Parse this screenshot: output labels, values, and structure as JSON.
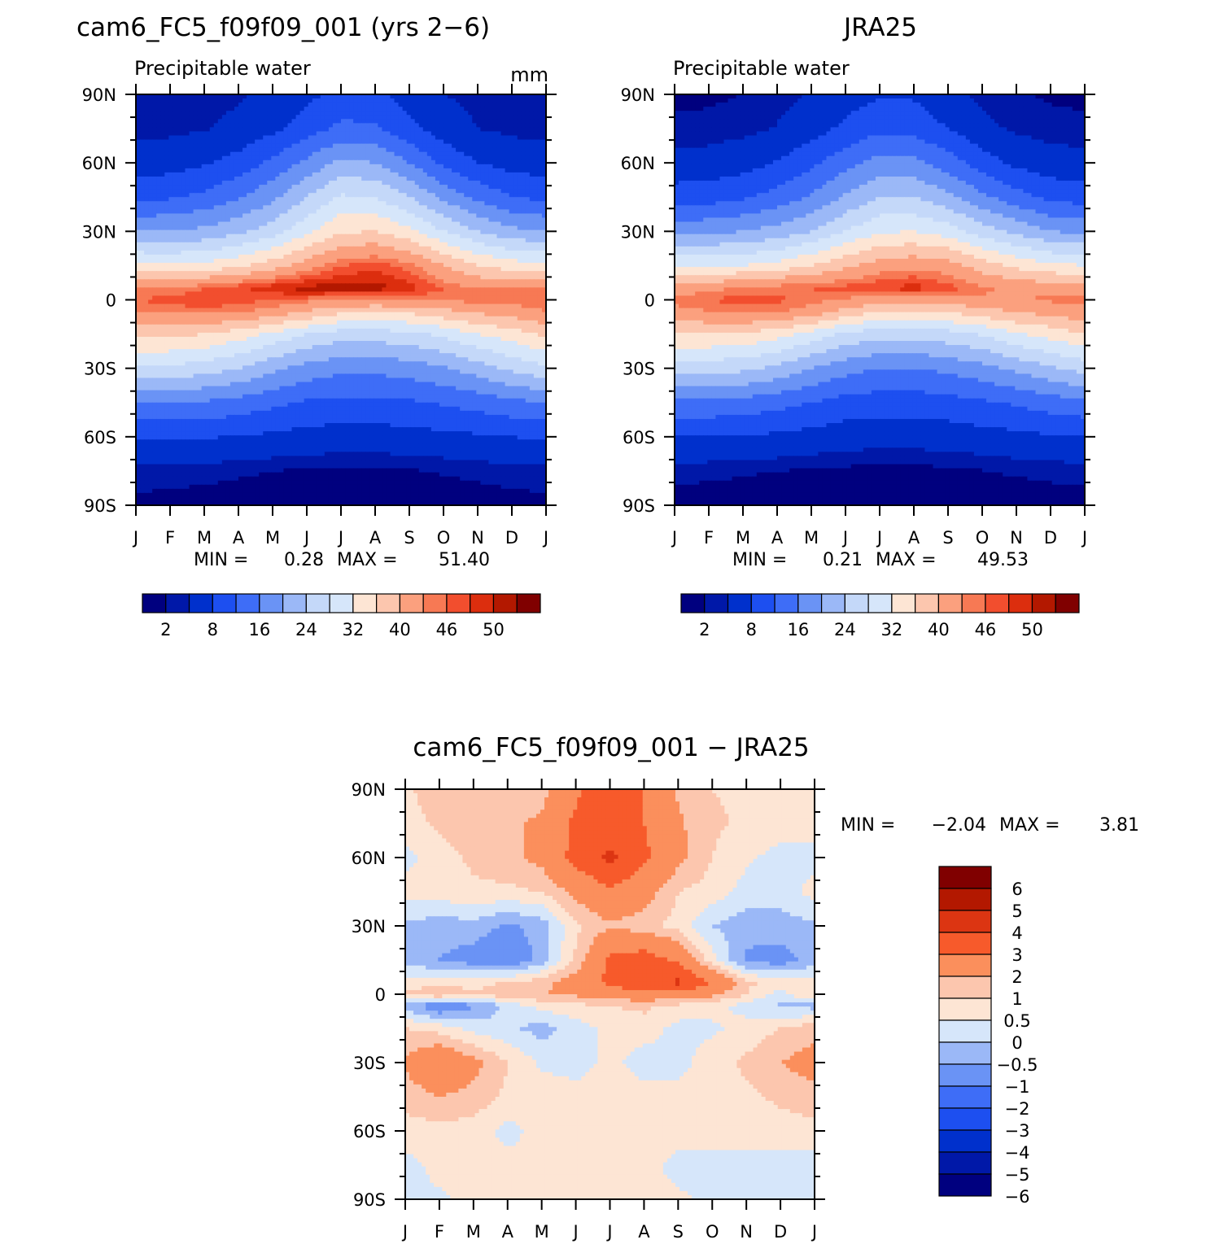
{
  "colors": {
    "seq": [
      "#00007f",
      "#0018a8",
      "#0030cc",
      "#1d4ff0",
      "#3e6df7",
      "#6a93f5",
      "#9bb8f7",
      "#c4d8f9",
      "#d6e6fa",
      "#fde5d4",
      "#fcc6ae",
      "#fba07e",
      "#f77954",
      "#f24e2e",
      "#dc2e0e",
      "#b31800",
      "#800000"
    ],
    "diff": [
      "#00007f",
      "#0018a8",
      "#0030cc",
      "#1d4ff0",
      "#3e6df7",
      "#6a93f5",
      "#9bb8f7",
      "#d6e6fa",
      "#fde5d4",
      "#fcc6ae",
      "#fb8f5c",
      "#f75a2b",
      "#dc3512",
      "#b31800",
      "#800000"
    ]
  },
  "chart_data": [
    {
      "type": "heatmap",
      "title": "cam6_FC5_f09f09_001 (yrs 2−6)",
      "subtitle": "Precipitable water",
      "units": "mm",
      "x_ticks": [
        "J",
        "F",
        "M",
        "A",
        "M",
        "J",
        "J",
        "A",
        "S",
        "O",
        "N",
        "D",
        "J"
      ],
      "y_ticks": [
        "90N",
        "60N",
        "30N",
        "0",
        "30S",
        "60S",
        "90S"
      ],
      "min_label": "MIN =",
      "min": "0.28",
      "max_label": "MAX =",
      "max": "51.40",
      "colorbar_labels": [
        "2",
        "8",
        "16",
        "24",
        "32",
        "40",
        "46",
        "50"
      ],
      "data": {
        "months": [
          "Jan",
          "Feb",
          "Mar",
          "Apr",
          "May",
          "Jun",
          "Jul",
          "Aug",
          "Sep",
          "Oct",
          "Nov",
          "Dec",
          "Jan"
        ],
        "lat": [
          90,
          75,
          60,
          45,
          30,
          15,
          5,
          0,
          -5,
          -15,
          -30,
          -45,
          -60,
          -75,
          -90
        ],
        "rows": [
          [
            2.5,
            2.5,
            2.8,
            3.5,
            5,
            7,
            9,
            9,
            6,
            4,
            3,
            2.6,
            2.5
          ],
          [
            3,
            3.2,
            3.8,
            5,
            7,
            10,
            13,
            12.5,
            9,
            6,
            4,
            3.2,
            3
          ],
          [
            6,
            6.3,
            7.5,
            9.5,
            13,
            17,
            21,
            20,
            16,
            11,
            8,
            6.5,
            6
          ],
          [
            11,
            11.5,
            13,
            15.5,
            19,
            24,
            28.5,
            28,
            24,
            19,
            15,
            12,
            11
          ],
          [
            20,
            20,
            21,
            23,
            26,
            31,
            35.5,
            36,
            33,
            28,
            24,
            21,
            20
          ],
          [
            33,
            32.5,
            33,
            35,
            38,
            42,
            46,
            47,
            45,
            40,
            36,
            34,
            33
          ],
          [
            44,
            44,
            46,
            47.5,
            49.5,
            51,
            51,
            51.2,
            49,
            46,
            44,
            44,
            44
          ],
          [
            46,
            47,
            48,
            47,
            46,
            45,
            44,
            44,
            44,
            44.5,
            45,
            45.5,
            46
          ],
          [
            44,
            44.5,
            45,
            44.5,
            43,
            40,
            37,
            36.5,
            37,
            39,
            41,
            42,
            44
          ],
          [
            37,
            37,
            36,
            34,
            31,
            28,
            26,
            26,
            27,
            29,
            32,
            34,
            37
          ],
          [
            27,
            27,
            26,
            24,
            21,
            18.5,
            17,
            17,
            18,
            19.5,
            22,
            25,
            27
          ],
          [
            16,
            16,
            15.5,
            14.5,
            13,
            11.5,
            11,
            11,
            11.5,
            12.5,
            13.5,
            15,
            16
          ],
          [
            8.5,
            8.5,
            8.3,
            7.8,
            7.2,
            6.5,
            6.2,
            6.2,
            6.5,
            7,
            7.5,
            8,
            8.5
          ],
          [
            3.2,
            3,
            2.8,
            2.4,
            2,
            1.7,
            1.6,
            1.6,
            1.8,
            2.2,
            2.6,
            3,
            3.2
          ],
          [
            1.3,
            1.1,
            0.8,
            0.6,
            0.45,
            0.35,
            0.3,
            0.3,
            0.4,
            0.55,
            0.8,
            1.1,
            1.3
          ]
        ]
      }
    },
    {
      "type": "heatmap",
      "title": "JRA25",
      "subtitle": "Precipitable water",
      "x_ticks": [
        "J",
        "F",
        "M",
        "A",
        "M",
        "J",
        "J",
        "A",
        "S",
        "O",
        "N",
        "D",
        "J"
      ],
      "y_ticks": [
        "90N",
        "60N",
        "30N",
        "0",
        "30S",
        "60S",
        "90S"
      ],
      "min_label": "MIN =",
      "min": "0.21",
      "max_label": "MAX =",
      "max": "49.53",
      "colorbar_labels": [
        "2",
        "8",
        "16",
        "24",
        "32",
        "40",
        "46",
        "50"
      ],
      "data": {
        "months": [
          "Jan",
          "Feb",
          "Mar",
          "Apr",
          "May",
          "Jun",
          "Jul",
          "Aug",
          "Sep",
          "Oct",
          "Nov",
          "Dec",
          "Jan"
        ],
        "lat": [
          90,
          75,
          60,
          45,
          30,
          15,
          5,
          0,
          -5,
          -15,
          -30,
          -45,
          -60,
          -75,
          -90
        ],
        "rows": [
          [
            1.5,
            1.6,
            2,
            2.8,
            4.2,
            6,
            7.5,
            7.5,
            5,
            3.2,
            2.2,
            1.7,
            1.5
          ],
          [
            2.5,
            2.6,
            3.1,
            4.2,
            6.2,
            9,
            11,
            10.5,
            8,
            5,
            3.4,
            2.7,
            2.5
          ],
          [
            5.2,
            5.4,
            6.4,
            8.2,
            11,
            14.5,
            17.5,
            17,
            14,
            10,
            7,
            5.6,
            5.2
          ],
          [
            10,
            10.2,
            11.5,
            13.5,
            16.5,
            20.5,
            24,
            24,
            21,
            17,
            13.5,
            11,
            10
          ],
          [
            19,
            19,
            20,
            21.5,
            24,
            28,
            31.5,
            32,
            30,
            26,
            23,
            20,
            19
          ],
          [
            32,
            31.5,
            32,
            33.5,
            36,
            39,
            42,
            43,
            42,
            38,
            35,
            33,
            32
          ],
          [
            42,
            43,
            44.5,
            45.5,
            46,
            47,
            48,
            49.2,
            47,
            44.5,
            43,
            42.5,
            42
          ],
          [
            45,
            46,
            47,
            46.5,
            45,
            43.5,
            42,
            42,
            42.5,
            43.5,
            44,
            44.5,
            45
          ],
          [
            43,
            44,
            45,
            44.5,
            42.5,
            39,
            36,
            35.5,
            36.5,
            38.5,
            40.5,
            41.5,
            43
          ],
          [
            36,
            36,
            35.5,
            33.5,
            30.5,
            27,
            25.5,
            25.5,
            26.5,
            28.5,
            31.5,
            33.5,
            36
          ],
          [
            25.5,
            25.5,
            25,
            23,
            20,
            17.5,
            16,
            16,
            17,
            18.5,
            21,
            23.5,
            25.5
          ],
          [
            15,
            15,
            14.5,
            13.5,
            12,
            10.5,
            10,
            10,
            10.5,
            11.5,
            12.5,
            14,
            15
          ],
          [
            8,
            8,
            7.8,
            7.2,
            6.5,
            5.8,
            5.5,
            5.5,
            5.8,
            6.4,
            7,
            7.6,
            8
          ],
          [
            2.8,
            2.6,
            2.3,
            2,
            1.7,
            1.4,
            1.3,
            1.3,
            1.5,
            1.9,
            2.3,
            2.6,
            2.8
          ],
          [
            0.9,
            0.7,
            0.5,
            0.4,
            0.3,
            0.25,
            0.21,
            0.22,
            0.3,
            0.4,
            0.6,
            0.8,
            0.9
          ]
        ]
      }
    },
    {
      "type": "heatmap",
      "title": "cam6_FC5_f09f09_001 − JRA25",
      "x_ticks": [
        "J",
        "F",
        "M",
        "A",
        "M",
        "J",
        "J",
        "A",
        "S",
        "O",
        "N",
        "D",
        "J"
      ],
      "y_ticks": [
        "90N",
        "60N",
        "30N",
        "0",
        "30S",
        "60S",
        "90S"
      ],
      "min_label": "MIN =",
      "min": "−2.04",
      "max_label": "MAX =",
      "max": "3.81",
      "colorbar_labels": [
        "6",
        "5",
        "4",
        "3",
        "2",
        "1",
        "0.5",
        "0",
        "−0.5",
        "−1",
        "−2",
        "−3",
        "−4",
        "−5",
        "−6"
      ],
      "data": {
        "months": [
          "Jan",
          "Feb",
          "Mar",
          "Apr",
          "May",
          "Jun",
          "Jul",
          "Aug",
          "Sep",
          "Oct",
          "Nov",
          "Dec",
          "Jan"
        ],
        "lat": [
          90,
          75,
          60,
          45,
          30,
          15,
          5,
          0,
          -5,
          -15,
          -30,
          -45,
          -60,
          -75,
          -90
        ],
        "rows": [
          [
            0.4,
            0.8,
            0.6,
            0.6,
            0.8,
            1.8,
            3.0,
            2.0,
            0.9,
            0.5,
            0.4,
            0.4,
            0.4
          ],
          [
            0.3,
            0.6,
            0.8,
            0.9,
            1.1,
            2.2,
            2.5,
            2.0,
            1.1,
            0.6,
            0.4,
            0.3,
            0.3
          ],
          [
            -0.2,
            0.3,
            0.6,
            0.8,
            1.2,
            2.3,
            3.2,
            2.2,
            1.2,
            0.5,
            0.1,
            -0.2,
            -0.2
          ],
          [
            0.2,
            0.3,
            0.4,
            0.4,
            0.5,
            1.2,
            1.8,
            1.3,
            0.5,
            0.3,
            -0.2,
            -0.3,
            0.2
          ],
          [
            -0.6,
            -0.8,
            -0.7,
            -1.1,
            -0.8,
            0.4,
            0.9,
            0.7,
            0.3,
            -0.5,
            -0.8,
            -0.7,
            -0.6
          ],
          [
            -0.7,
            -1.0,
            -1.3,
            -1.6,
            -0.8,
            0.6,
            2.2,
            2.5,
            1.8,
            0.2,
            -1.1,
            -1.3,
            -0.7
          ],
          [
            0.2,
            0.3,
            0.3,
            0.6,
            0.8,
            1.4,
            2.2,
            2.8,
            3.2,
            2.0,
            0.6,
            0.3,
            0.2
          ],
          [
            0.6,
            1.0,
            0.6,
            0.8,
            1.0,
            1.1,
            1.4,
            1.6,
            1.4,
            1.2,
            0.5,
            -0.2,
            0.6
          ],
          [
            -0.7,
            -1.6,
            -1.1,
            -0.3,
            0.2,
            0.4,
            0.5,
            0.6,
            0.4,
            0.2,
            -0.2,
            -0.6,
            -0.7
          ],
          [
            0.5,
            0.3,
            -0.2,
            -0.4,
            -0.7,
            -0.3,
            0.2,
            0.3,
            -0.2,
            -0.1,
            0.2,
            0.5,
            0.8
          ],
          [
            1.1,
            1.8,
            1.2,
            0.5,
            -0.1,
            -0.3,
            0.2,
            -0.3,
            -0.2,
            0.3,
            0.6,
            1.0,
            1.3
          ],
          [
            0.7,
            1.0,
            0.8,
            0.4,
            0.3,
            0.3,
            0.2,
            0.3,
            0.2,
            0.3,
            0.4,
            0.6,
            0.8
          ],
          [
            0.3,
            0.3,
            0.3,
            -0.2,
            0.2,
            0.2,
            0.2,
            0.3,
            0.3,
            0.2,
            0.2,
            0.3,
            0.3
          ],
          [
            -0.2,
            0.2,
            0.3,
            0.2,
            0.2,
            0.2,
            0.2,
            0.2,
            -0.2,
            -0.2,
            -0.2,
            -0.2,
            -0.2
          ],
          [
            -0.2,
            -0.1,
            0.2,
            0.2,
            0.2,
            0.2,
            0.2,
            0.2,
            0.1,
            -0.1,
            -0.2,
            -0.2,
            -0.2
          ]
        ]
      }
    }
  ],
  "levels": {
    "seq": [
      2,
      4,
      8,
      12,
      16,
      20,
      24,
      28,
      32,
      36,
      40,
      44,
      46,
      48,
      50,
      52
    ],
    "diff": [
      -6,
      -5,
      -4,
      -3,
      -2,
      -1,
      -0.5,
      0,
      0.5,
      1,
      2,
      3,
      4,
      5,
      6
    ]
  }
}
